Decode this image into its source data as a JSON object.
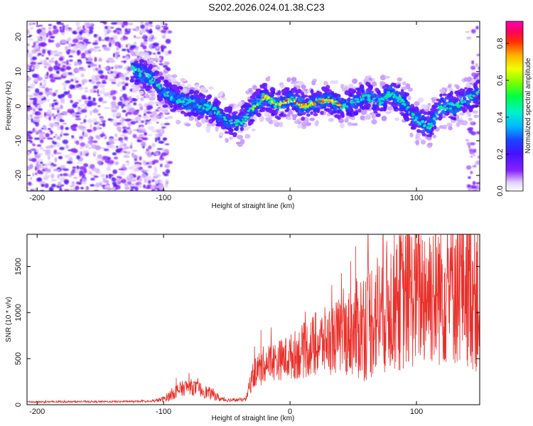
{
  "title": "S202.2026.024.01.38.C23",
  "chart_data": [
    {
      "type": "heatmap",
      "title": "S202.2026.024.01.38.C23",
      "xlabel": "Height of straight line (km)",
      "ylabel": "Frequency (Hz)",
      "xlim": [
        -208,
        150
      ],
      "ylim": [
        -24.5,
        24.5
      ],
      "xticks": [
        -200,
        -100,
        0,
        100
      ],
      "yticks": [
        -20,
        -10,
        0,
        10,
        20
      ],
      "colorbar": {
        "label": "Normalized spectral amplitude",
        "range": [
          0,
          0.92
        ],
        "ticks": [
          0.0,
          0.2,
          0.4,
          0.6,
          0.8
        ],
        "tick_labels": [
          "0.0",
          "0.2",
          "0.4",
          "0.6",
          "0.8"
        ]
      },
      "ridge": {
        "x": [
          -125,
          -110,
          -100,
          -90,
          -80,
          -70,
          -60,
          -50,
          -40,
          -35,
          -28,
          -20,
          -10,
          0,
          10,
          20,
          30,
          40,
          50,
          60,
          70,
          80,
          90,
          100,
          110,
          120,
          130,
          140,
          150
        ],
        "freq": [
          11,
          8,
          4,
          2,
          1,
          0,
          -1,
          -4,
          -5,
          -3,
          0,
          3,
          0,
          2,
          0,
          1,
          2,
          0,
          1,
          3,
          1,
          4,
          1,
          -4,
          -6,
          0,
          0,
          2,
          4
        ]
      },
      "noise_region": [
        -208,
        -100
      ]
    },
    {
      "type": "line",
      "xlabel": "Height of straight line (km)",
      "ylabel": "SNR (10 * v/v)",
      "xlim": [
        -208,
        150
      ],
      "ylim": [
        0,
        1850
      ],
      "xticks": [
        -200,
        -100,
        0,
        100
      ],
      "yticks": [
        0,
        500,
        1000,
        1500
      ],
      "color": "#e8302a",
      "envelope": {
        "x": [
          -208,
          -110,
          -100,
          -95,
          -90,
          -80,
          -70,
          -65,
          -60,
          -55,
          -50,
          -35,
          -30,
          -25,
          -20,
          -10,
          0,
          10,
          20,
          30,
          40,
          50,
          55,
          60,
          70,
          80,
          90,
          100,
          110,
          120,
          130,
          140,
          150
        ],
        "value": [
          30,
          35,
          60,
          100,
          150,
          200,
          160,
          130,
          110,
          60,
          50,
          55,
          300,
          400,
          450,
          480,
          520,
          580,
          650,
          700,
          750,
          800,
          850,
          900,
          1000,
          1100,
          1150,
          1200,
          1250,
          1250,
          1300,
          1350,
          1200
        ],
        "noise": [
          10,
          10,
          30,
          60,
          80,
          90,
          80,
          70,
          60,
          30,
          20,
          20,
          150,
          180,
          200,
          220,
          250,
          300,
          350,
          380,
          420,
          500,
          600,
          650,
          700,
          750,
          800,
          800,
          850,
          850,
          900,
          950,
          900
        ]
      },
      "spikes": [
        {
          "x": -90,
          "value": 290
        },
        {
          "x": -23,
          "value": 810
        },
        {
          "x": 20,
          "value": 1000
        },
        {
          "x": 48,
          "value": 1560
        },
        {
          "x": 52,
          "value": 1720
        },
        {
          "x": 80,
          "value": 1480
        },
        {
          "x": 87,
          "value": 1830
        },
        {
          "x": 115,
          "value": 1760
        },
        {
          "x": 130,
          "value": 1700
        },
        {
          "x": 140,
          "value": 1850
        }
      ]
    }
  ]
}
